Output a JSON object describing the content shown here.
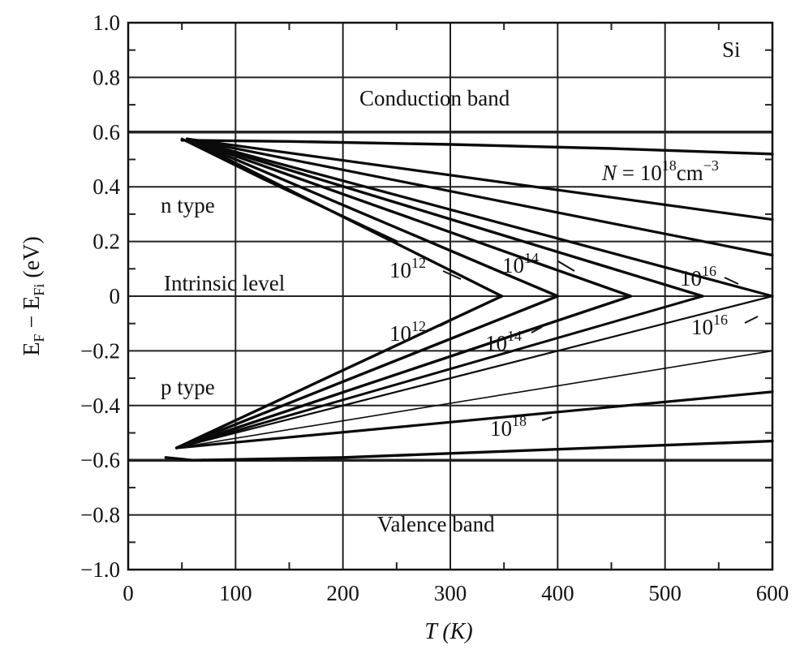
{
  "chart_data": {
    "type": "line",
    "xlabel": "T (K)",
    "ylabel": "E_F − E_Fi (eV)",
    "xlim": [
      0,
      600
    ],
    "ylim": [
      -1.0,
      1.0
    ],
    "x_ticks": [
      0,
      100,
      200,
      300,
      400,
      500,
      600
    ],
    "x_tick_labels": [
      "0",
      "100",
      "200",
      "300",
      "400",
      "500",
      "600"
    ],
    "y_ticks": [
      1.0,
      0.8,
      0.6,
      0.4,
      0.2,
      0,
      -0.2,
      -0.4,
      -0.6,
      -0.8,
      -1.0
    ],
    "y_tick_labels": [
      "1.0",
      "0.8",
      "0.6",
      "0.4",
      "0.2",
      "0",
      "−0.2",
      "−0.4",
      "−0.6",
      "−0.8",
      "−1.0"
    ],
    "grid": true,
    "material_label": "Si",
    "region_labels": {
      "conduction": "Conduction band",
      "n_type": "n type",
      "intrinsic": "Intrinsic level",
      "p_type": "p type",
      "valence": "Valence band"
    },
    "curve_labels": {
      "n_18": "N = 10^18 cm^-3",
      "n_16": "10^16",
      "n_14": "10^14",
      "n_12": "10^12",
      "p_12": "10^12",
      "p_14": "10^14",
      "p_16": "10^16",
      "p_18": "10^18"
    },
    "band_edges": {
      "conduction": 0.6,
      "valence": -0.6
    },
    "series": [
      {
        "x": [
          50,
          150,
          300,
          450,
          600
        ],
        "y": [
          0.57,
          0.566,
          0.555,
          0.54,
          0.52
        ]
      },
      {
        "x": [
          55,
          600
        ],
        "y": [
          0.575,
          0.28
        ]
      },
      {
        "x": [
          55,
          600
        ],
        "y": [
          0.575,
          0.15
        ]
      },
      {
        "x": [
          55,
          600
        ],
        "y": [
          0.575,
          0.0
        ]
      },
      {
        "x": [
          55,
          535
        ],
        "y": [
          0.575,
          0.0
        ]
      },
      {
        "x": [
          55,
          468
        ],
        "y": [
          0.575,
          0.0
        ]
      },
      {
        "x": [
          55,
          400
        ],
        "y": [
          0.575,
          0.0
        ]
      },
      {
        "x": [
          55,
          348
        ],
        "y": [
          0.575,
          0.0
        ]
      },
      {
        "x": [
          50,
          125,
          250
        ],
        "y": [
          0.575,
          0.43,
          0.2
        ]
      },
      {
        "x": [
          45,
          348
        ],
        "y": [
          -0.555,
          0.0
        ]
      },
      {
        "x": [
          45,
          400
        ],
        "y": [
          -0.555,
          0.0
        ]
      },
      {
        "x": [
          45,
          468
        ],
        "y": [
          -0.555,
          0.0
        ]
      },
      {
        "x": [
          45,
          535
        ],
        "y": [
          -0.555,
          0.0
        ]
      },
      {
        "x": [
          45,
          600
        ],
        "y": [
          -0.555,
          0.0
        ]
      },
      {
        "x": [
          45,
          600
        ],
        "y": [
          -0.555,
          -0.2
        ]
      },
      {
        "x": [
          45,
          600
        ],
        "y": [
          -0.555,
          -0.35
        ]
      },
      {
        "x": [
          35,
          60,
          200,
          400,
          600
        ],
        "y": [
          -0.59,
          -0.6,
          -0.59,
          -0.56,
          -0.53
        ]
      }
    ]
  }
}
